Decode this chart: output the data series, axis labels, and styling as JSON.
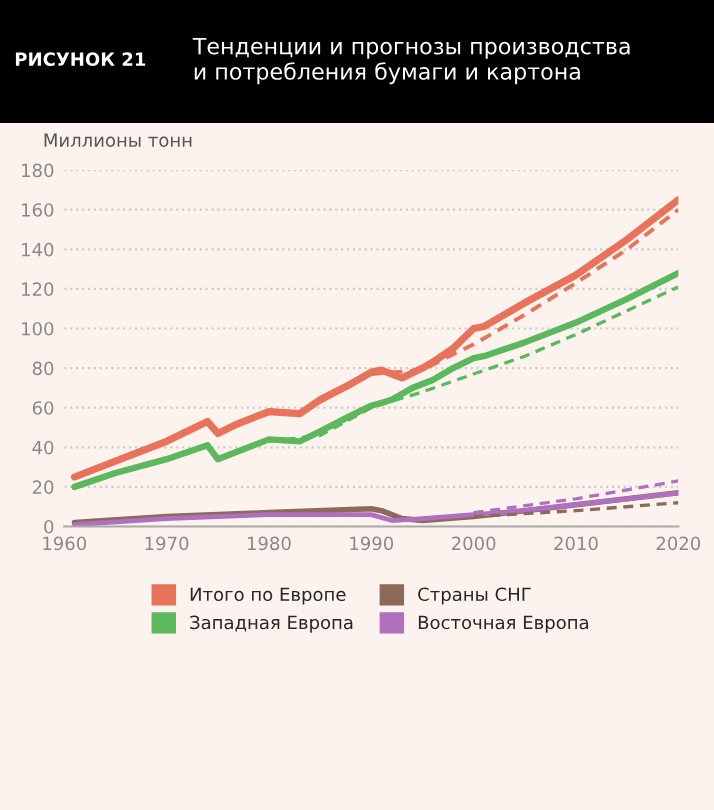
{
  "chart_data": {
    "type": "line",
    "title": "Тенденции и прогнозы производства\nи потребления бумаги и картона",
    "ylabel": "Миллионы тонн",
    "annotations": [
      "РИСУНОК 21"
    ],
    "xlim": [
      1960,
      2020
    ],
    "xticks": [
      1960,
      1970,
      1980,
      1990,
      2000,
      2010,
      2020
    ],
    "ylim": [
      0,
      180
    ],
    "yticks": [
      0,
      20,
      40,
      60,
      80,
      100,
      120,
      140,
      160,
      180
    ],
    "grid": "y",
    "legend": "bottom",
    "line_style": "solid",
    "series": [
      {
        "name": "Итого по Европе",
        "color": "#e8735a",
        "x": [
          1961,
          1965,
          1970,
          1974,
          1975,
          1977,
          1980,
          1983,
          1985,
          1988,
          1990,
          1991,
          1993,
          1995,
          1996,
          1998,
          2000,
          2001,
          2005,
          2010,
          2015,
          2020
        ],
        "values": [
          25,
          33,
          43,
          53,
          47,
          52,
          58,
          57,
          64,
          72,
          78,
          79,
          75,
          80,
          83,
          90,
          100,
          101,
          113,
          127,
          145,
          165
        ]
      },
      {
        "name": "Западная Европа",
        "color": "#5cb85c",
        "x": [
          1961,
          1965,
          1970,
          1974,
          1975,
          1977,
          1980,
          1983,
          1985,
          1988,
          1990,
          1992,
          1994,
          1996,
          1998,
          2000,
          2001,
          2005,
          2010,
          2015,
          2020
        ],
        "values": [
          20,
          27,
          34,
          41,
          34,
          38,
          44,
          43,
          48,
          56,
          61,
          64,
          70,
          74,
          80,
          85,
          86,
          93,
          103,
          115,
          128
        ]
      },
      {
        "name": "Страны СНГ",
        "color": "#8b6a5a",
        "x": [
          1961,
          1970,
          1980,
          1990,
          1991,
          1993,
          1995,
          2000,
          2005,
          2010,
          2015,
          2020
        ],
        "values": [
          2,
          5,
          7,
          9,
          8,
          4,
          3,
          5,
          8,
          11,
          14,
          17
        ]
      },
      {
        "name": "Восточная Европа",
        "color": "#b070c0",
        "x": [
          1961,
          1970,
          1980,
          1990,
          1992,
          1995,
          2000,
          2005,
          2010,
          2015,
          2020
        ],
        "values": [
          1,
          4,
          6,
          6,
          3,
          4,
          6,
          8,
          11,
          14,
          17
        ]
      },
      {
        "color": "#e8735a",
        "line_style": "dashed",
        "x": [
          1985,
          1990,
          1995,
          1998,
          2000,
          2005,
          2010,
          2015,
          2020
        ],
        "values": [
          63,
          77,
          79,
          87,
          92,
          107,
          123,
          140,
          160
        ]
      },
      {
        "color": "#5cb85c",
        "line_style": "dashed",
        "x": [
          1980,
          1985,
          1990,
          1995,
          2000,
          2005,
          2010,
          2015,
          2020
        ],
        "values": [
          43,
          46,
          60,
          68,
          77,
          86,
          97,
          109,
          121
        ]
      },
      {
        "color": "#8b6a5a",
        "line_style": "dashed",
        "x": [
          2000,
          2010,
          2020
        ],
        "values": [
          5,
          8,
          12
        ]
      },
      {
        "color": "#b070c0",
        "line_style": "dashed",
        "x": [
          2000,
          2010,
          2020
        ],
        "values": [
          7,
          14,
          23
        ]
      }
    ]
  }
}
